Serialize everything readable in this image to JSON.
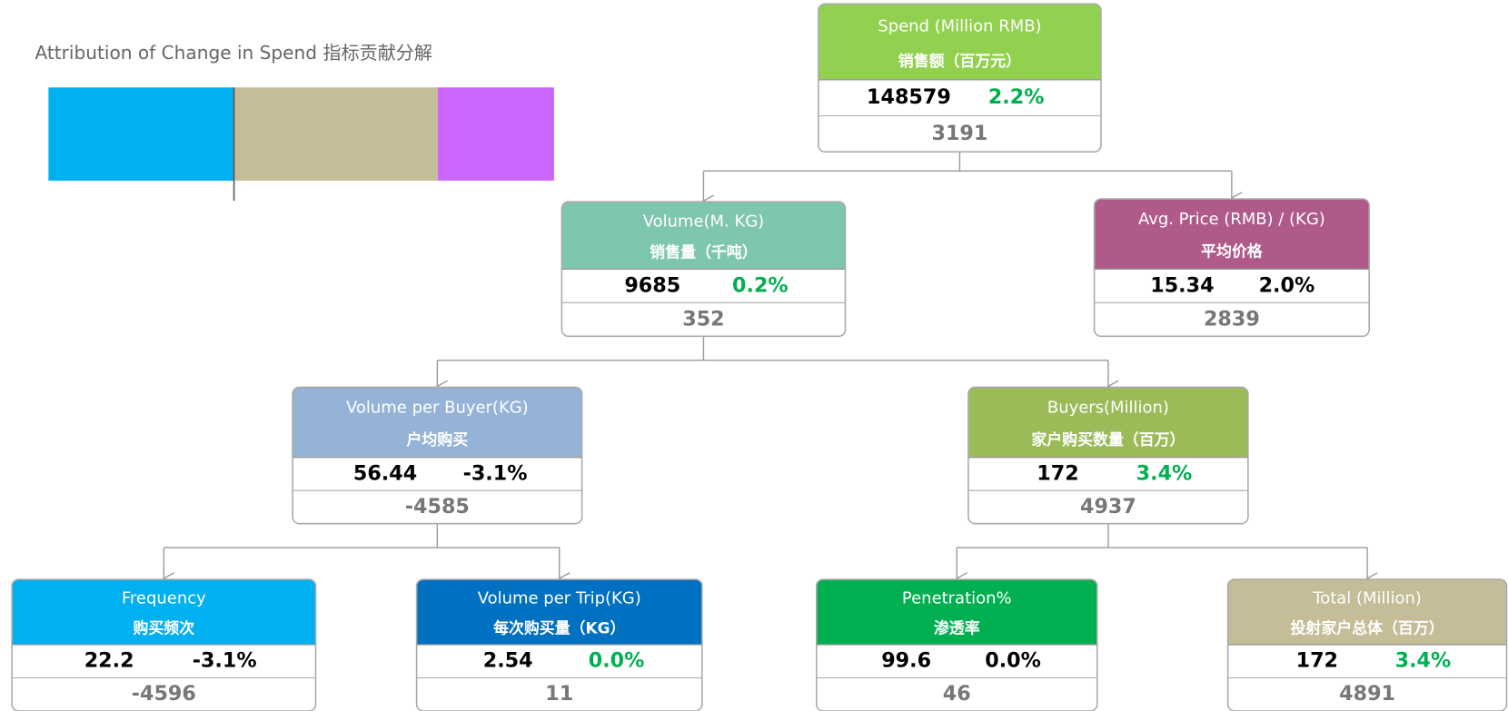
{
  "title": "Attribution of Change in Spend  指标贡献分解",
  "nodes": [
    {
      "title_en": "Spend (Million RMB)",
      "title_cn": "销售额（百万元）",
      "value": 148579,
      "change": "2.2%",
      "contribution": 3191,
      "header_color": "#92d050",
      "change_color": "#00b050"
    },
    {
      "title_en": "Volume(M. KG)",
      "title_cn": "销售量（千吨）",
      "value": 9685,
      "change": "0.2%",
      "contribution": 352,
      "header_color": "#7fc6ae",
      "change_color": "#00b050"
    },
    {
      "title_en": "Avg. Price (RMB) / (KG)",
      "title_cn": "平均价格",
      "value": 15.34,
      "change": "2.0%",
      "contribution": 2839,
      "header_color": "#b05a8a",
      "change_color": "#000000"
    },
    {
      "title_en": "Volume per Buyer(KG)",
      "title_cn": "户均购买",
      "value": 56.44,
      "change": "-3.1%",
      "contribution": -4585,
      "header_color": "#95b3d7",
      "change_color": "#000000"
    },
    {
      "title_en": "Buyers(Million)",
      "title_cn": "家户购买数量（百万）",
      "value": 172,
      "change": "3.4%",
      "contribution": 4937,
      "header_color": "#9bbb59",
      "change_color": "#00b050"
    },
    {
      "title_en": "Frequency",
      "title_cn": "购买频次",
      "value": 22.2,
      "change": "-3.1%",
      "contribution": -4596,
      "header_color": "#00b0f0",
      "change_color": "#000000"
    },
    {
      "title_en": "Volume per Trip(KG)",
      "title_cn": "每次购买量（KG）",
      "value": 2.54,
      "change": "0.0%",
      "contribution": 11,
      "header_color": "#0070c0",
      "change_color": "#00b050"
    },
    {
      "title_en": "Penetration%",
      "title_cn": "渗透率",
      "value": 99.6,
      "change": "0.0%",
      "contribution": 46,
      "header_color": "#00b050",
      "change_color": "#000000"
    },
    {
      "title_en": "Total (Million)",
      "title_cn": "投射家户总体（百万）",
      "value": 172,
      "change": "3.4%",
      "contribution": 4891,
      "header_color": "#c4bd97",
      "change_color": "#00b050"
    }
  ]
}
